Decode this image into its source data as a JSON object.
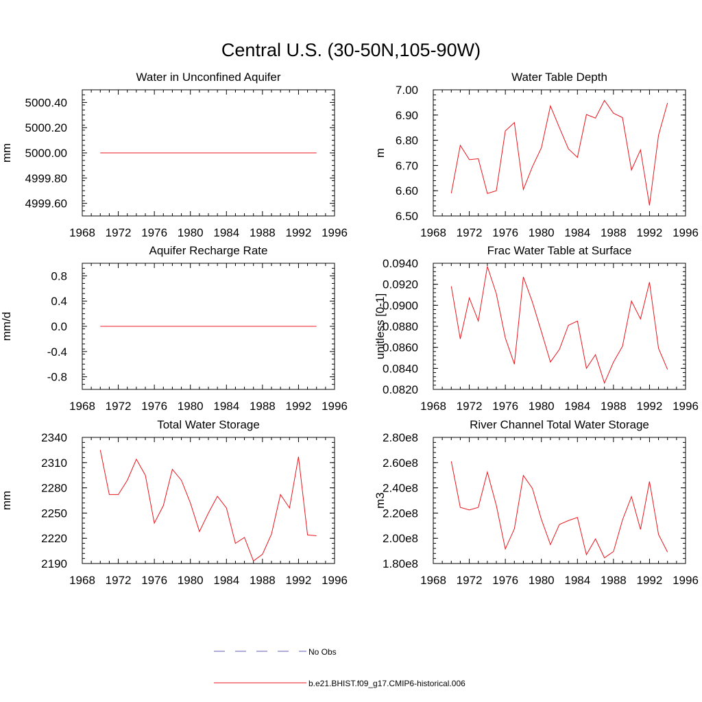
{
  "figure": {
    "title": "Central U.S. (30-50N,105-90W)"
  },
  "legend": {
    "placement": "bottom-center",
    "entries": [
      {
        "label": "No Obs",
        "style": "dashed",
        "color": "#5b5bb0"
      },
      {
        "label": "b.e21.BHIST.f09_g17.CMIP6-historical.006",
        "style": "solid",
        "color": "#e8141b"
      }
    ]
  },
  "chart_data": [
    {
      "type": "line",
      "title": "Water in Unconfined Aquifer",
      "ylabel": "mm",
      "xlim": [
        1968,
        1996
      ],
      "ylim": [
        4999.5,
        5000.5
      ],
      "xticks": [
        1968,
        1972,
        1976,
        1980,
        1984,
        1988,
        1992,
        1996
      ],
      "xtick_labels": [
        "1968",
        "1972",
        "1976",
        "1980",
        "1984",
        "1988",
        "1992",
        "1996"
      ],
      "yticks": [
        4999.6,
        4999.8,
        5000.0,
        5000.2,
        5000.4
      ],
      "ytick_labels": [
        "4999.60",
        "4999.80",
        "5000.00",
        "5000.20",
        "5000.40"
      ],
      "grid": false,
      "x": [
        1970,
        1971,
        1972,
        1973,
        1974,
        1975,
        1976,
        1977,
        1978,
        1979,
        1980,
        1981,
        1982,
        1983,
        1984,
        1985,
        1986,
        1987,
        1988,
        1989,
        1990,
        1991,
        1992,
        1993,
        1994
      ],
      "series": [
        {
          "color": "#e8141b",
          "values": [
            5000,
            5000,
            5000,
            5000,
            5000,
            5000,
            5000,
            5000,
            5000,
            5000,
            5000,
            5000,
            5000,
            5000,
            5000,
            5000,
            5000,
            5000,
            5000,
            5000,
            5000,
            5000,
            5000,
            5000,
            5000
          ]
        }
      ]
    },
    {
      "type": "line",
      "title": "Water Table Depth",
      "ylabel": "m",
      "xlim": [
        1968,
        1996
      ],
      "ylim": [
        6.5,
        7.0
      ],
      "xticks": [
        1968,
        1972,
        1976,
        1980,
        1984,
        1988,
        1992,
        1996
      ],
      "xtick_labels": [
        "1968",
        "1972",
        "1976",
        "1980",
        "1984",
        "1988",
        "1992",
        "1996"
      ],
      "yticks": [
        6.5,
        6.6,
        6.7,
        6.8,
        6.9,
        7.0
      ],
      "ytick_labels": [
        "6.50",
        "6.60",
        "6.70",
        "6.80",
        "6.90",
        "7.00"
      ],
      "grid": false,
      "x": [
        1970,
        1971,
        1972,
        1973,
        1974,
        1975,
        1976,
        1977,
        1978,
        1979,
        1980,
        1981,
        1982,
        1983,
        1984,
        1985,
        1986,
        1987,
        1988,
        1989,
        1990,
        1991,
        1992,
        1993,
        1994
      ],
      "series": [
        {
          "color": "#e8141b",
          "values": [
            6.59,
            6.78,
            6.723,
            6.727,
            6.589,
            6.6,
            6.837,
            6.87,
            6.605,
            6.695,
            6.77,
            6.936,
            6.85,
            6.766,
            6.732,
            6.902,
            6.888,
            6.958,
            6.907,
            6.89,
            6.682,
            6.762,
            6.542,
            6.82,
            6.948
          ]
        }
      ]
    },
    {
      "type": "line",
      "title": "Aquifer Recharge Rate",
      "ylabel": "mm/d",
      "xlim": [
        1968,
        1996
      ],
      "ylim": [
        -1.0,
        1.0
      ],
      "xticks": [
        1968,
        1972,
        1976,
        1980,
        1984,
        1988,
        1992,
        1996
      ],
      "xtick_labels": [
        "1968",
        "1972",
        "1976",
        "1980",
        "1984",
        "1988",
        "1992",
        "1996"
      ],
      "yticks": [
        -0.8,
        -0.4,
        0.0,
        0.4,
        0.8
      ],
      "ytick_labels": [
        "-0.8",
        "-0.4",
        "0.0",
        "0.4",
        "0.8"
      ],
      "grid": false,
      "x": [
        1970,
        1971,
        1972,
        1973,
        1974,
        1975,
        1976,
        1977,
        1978,
        1979,
        1980,
        1981,
        1982,
        1983,
        1984,
        1985,
        1986,
        1987,
        1988,
        1989,
        1990,
        1991,
        1992,
        1993,
        1994
      ],
      "series": [
        {
          "color": "#e8141b",
          "values": [
            0,
            0,
            0,
            0,
            0,
            0,
            0,
            0,
            0,
            0,
            0,
            0,
            0,
            0,
            0,
            0,
            0,
            0,
            0,
            0,
            0,
            0,
            0,
            0,
            0
          ]
        }
      ]
    },
    {
      "type": "line",
      "title": "Frac Water Table at Surface",
      "ylabel": "unitless [0-1]",
      "xlim": [
        1968,
        1996
      ],
      "ylim": [
        0.082,
        0.094
      ],
      "xticks": [
        1968,
        1972,
        1976,
        1980,
        1984,
        1988,
        1992,
        1996
      ],
      "xtick_labels": [
        "1968",
        "1972",
        "1976",
        "1980",
        "1984",
        "1988",
        "1992",
        "1996"
      ],
      "yticks": [
        0.082,
        0.084,
        0.086,
        0.088,
        0.09,
        0.092,
        0.094
      ],
      "ytick_labels": [
        "0.0820",
        "0.0840",
        "0.0860",
        "0.0880",
        "0.0900",
        "0.0920",
        "0.0940"
      ],
      "grid": false,
      "x": [
        1970,
        1971,
        1972,
        1973,
        1974,
        1975,
        1976,
        1977,
        1978,
        1979,
        1980,
        1981,
        1982,
        1983,
        1984,
        1985,
        1986,
        1987,
        1988,
        1989,
        1990,
        1991,
        1992,
        1993,
        1994
      ],
      "series": [
        {
          "color": "#e8141b",
          "values": [
            0.0918,
            0.0868,
            0.0907,
            0.0885,
            0.0937,
            0.0911,
            0.0869,
            0.0844,
            0.0927,
            0.0903,
            0.0875,
            0.0846,
            0.0858,
            0.0881,
            0.0885,
            0.084,
            0.0853,
            0.0826,
            0.0846,
            0.0861,
            0.0904,
            0.0887,
            0.0922,
            0.0859,
            0.0839
          ]
        }
      ]
    },
    {
      "type": "line",
      "title": "Total Water Storage",
      "ylabel": "mm",
      "xlim": [
        1968,
        1996
      ],
      "ylim": [
        2190,
        2340
      ],
      "xticks": [
        1968,
        1972,
        1976,
        1980,
        1984,
        1988,
        1992,
        1996
      ],
      "xtick_labels": [
        "1968",
        "1972",
        "1976",
        "1980",
        "1984",
        "1988",
        "1992",
        "1996"
      ],
      "yticks": [
        2190,
        2220,
        2250,
        2280,
        2310,
        2340
      ],
      "ytick_labels": [
        "2190",
        "2220",
        "2250",
        "2280",
        "2310",
        "2340"
      ],
      "grid": false,
      "x": [
        1970,
        1971,
        1972,
        1973,
        1974,
        1975,
        1976,
        1977,
        1978,
        1979,
        1980,
        1981,
        1982,
        1983,
        1984,
        1985,
        1986,
        1987,
        1988,
        1989,
        1990,
        1991,
        1992,
        1993,
        1994
      ],
      "series": [
        {
          "color": "#e8141b",
          "values": [
            2325,
            2272,
            2272,
            2289,
            2314,
            2295,
            2238,
            2259,
            2302,
            2289,
            2262,
            2228,
            2250,
            2270,
            2256,
            2214,
            2221,
            2193,
            2201,
            2225,
            2272,
            2256,
            2317,
            2224,
            2223
          ]
        }
      ]
    },
    {
      "type": "line",
      "title": "River Channel Total Water Storage",
      "ylabel": "m3",
      "xlim": [
        1968,
        1996
      ],
      "ylim": [
        180000000,
        280000000
      ],
      "xticks": [
        1968,
        1972,
        1976,
        1980,
        1984,
        1988,
        1992,
        1996
      ],
      "xtick_labels": [
        "1968",
        "1972",
        "1976",
        "1980",
        "1984",
        "1988",
        "1992",
        "1996"
      ],
      "yticks": [
        180000000,
        200000000,
        220000000,
        240000000,
        260000000,
        280000000
      ],
      "ytick_labels": [
        "1.80e8",
        "2.00e8",
        "2.20e8",
        "2.40e8",
        "2.60e8",
        "2.80e8"
      ],
      "grid": false,
      "x": [
        1970,
        1971,
        1972,
        1973,
        1974,
        1975,
        1976,
        1977,
        1978,
        1979,
        1980,
        1981,
        1982,
        1983,
        1984,
        1985,
        1986,
        1987,
        1988,
        1989,
        1990,
        1991,
        1992,
        1993,
        1994
      ],
      "series": [
        {
          "color": "#e8141b",
          "values": [
            261000000,
            224500000,
            222500000,
            224500000,
            252500000,
            226000000,
            191500000,
            207500000,
            249800000,
            239500000,
            215000000,
            195000000,
            211000000,
            214000000,
            216500000,
            187000000,
            199500000,
            184500000,
            189500000,
            214500000,
            233000000,
            207000000,
            245000000,
            203000000,
            189000000
          ]
        }
      ]
    }
  ]
}
